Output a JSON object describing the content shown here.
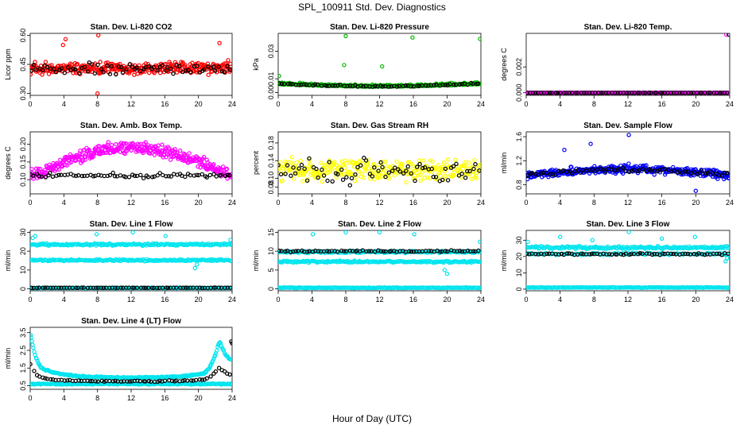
{
  "page": {
    "title": "SPL_100911  Std. Dev. Diagnostics",
    "xlabel": "Hour of Day (UTC)"
  },
  "chart_data": [
    {
      "type": "scatter",
      "title": "Stan. Dev. Li-820 CO2",
      "ylabel": "Licor ppm",
      "xlim": [
        0,
        24
      ],
      "ylim": [
        0.29,
        0.61
      ],
      "xticks": [
        "0",
        "4",
        "8",
        "12",
        "16",
        "20",
        "24"
      ],
      "yticks": [
        {
          "v": 0.3,
          "t": "0.30"
        },
        {
          "v": 0.45,
          "t": "0.45"
        },
        {
          "v": 0.6,
          "t": "0.60"
        }
      ],
      "series": [
        {
          "color": "#ff0000",
          "gen": {
            "kind": "noise",
            "base": 0.43,
            "amp": 0.045,
            "n": 340,
            "seed": 11,
            "outliers": [
              [
                4.2,
                0.58
              ],
              [
                8.1,
                0.6
              ],
              [
                8.0,
                0.3
              ],
              [
                22.5,
                0.56
              ],
              [
                3.9,
                0.55
              ]
            ]
          }
        },
        {
          "color": "#000000",
          "gen": {
            "kind": "noise",
            "base": 0.43,
            "amp": 0.04,
            "n": 72,
            "seed": 12
          }
        }
      ]
    },
    {
      "type": "scatter",
      "title": "Stan. Dev. Li-820 Pressure",
      "ylabel": "kPa",
      "xlim": [
        0,
        24
      ],
      "ylim": [
        -0.002,
        0.043
      ],
      "xticks": [
        "0",
        "4",
        "8",
        "12",
        "16",
        "20",
        "24"
      ],
      "yticks": [
        {
          "v": 0.0,
          "t": "0.00"
        },
        {
          "v": 0.01,
          "t": "0.01"
        },
        {
          "v": 0.03,
          "t": "0.03"
        }
      ],
      "series": [
        {
          "color": "#00bb00",
          "gen": {
            "kind": "bowl",
            "base": 0.006,
            "amp": 0.0015,
            "dip": 0.003,
            "n": 340,
            "seed": 21,
            "outliers": [
              [
                8.0,
                0.041
              ],
              [
                15.9,
                0.04
              ],
              [
                23.9,
                0.039
              ],
              [
                7.8,
                0.02
              ],
              [
                12.3,
                0.019
              ],
              [
                0.1,
                0.012
              ]
            ]
          }
        },
        {
          "color": "#000000",
          "gen": {
            "kind": "bowl",
            "base": 0.006,
            "amp": 0.0012,
            "dip": 0.003,
            "n": 72,
            "seed": 22
          }
        }
      ]
    },
    {
      "type": "scatter",
      "title": "Stan. Dev. Li-820 Temp.",
      "ylabel": "degrees C",
      "xlim": [
        0,
        24
      ],
      "ylim": [
        -0.0002,
        0.0046
      ],
      "xticks": [
        "0",
        "4",
        "8",
        "12",
        "16",
        "20",
        "24"
      ],
      "yticks": [
        {
          "v": 0.0,
          "t": "0.000"
        },
        {
          "v": 0.002,
          "t": "0.002"
        }
      ],
      "series": [
        {
          "color": "#ff00ff",
          "gen": {
            "kind": "flat",
            "base": 0.0,
            "n": 340,
            "seed": 31,
            "outliers": [
              [
                23.6,
                0.0045
              ],
              [
                0.0,
                0.0
              ]
            ]
          }
        },
        {
          "color": "#000000",
          "gen": {
            "kind": "flat",
            "base": 0.0,
            "n": 72,
            "seed": 32,
            "outliers": [
              [
                23.9,
                0.0045
              ]
            ]
          }
        }
      ]
    },
    {
      "type": "scatter",
      "title": "Stan. Dev. Amb. Box Temp.",
      "ylabel": "degrees C",
      "xlim": [
        0,
        24
      ],
      "ylim": [
        0.06,
        0.235
      ],
      "xticks": [
        "0",
        "4",
        "8",
        "12",
        "16",
        "20",
        "24"
      ],
      "yticks": [
        {
          "v": 0.1,
          "t": "0.10"
        },
        {
          "v": 0.15,
          "t": "0.15"
        },
        {
          "v": 0.2,
          "t": "0.20"
        }
      ],
      "series": [
        {
          "color": "#ff00ff",
          "gen": {
            "kind": "arch",
            "base": 0.11,
            "peak": 0.19,
            "amp": 0.025,
            "n": 380,
            "seed": 41
          }
        },
        {
          "color": "#000000",
          "gen": {
            "kind": "noise",
            "base": 0.112,
            "amp": 0.01,
            "n": 72,
            "seed": 42
          }
        }
      ]
    },
    {
      "type": "scatter",
      "title": "Stan. Dev. Gas Stream RH",
      "ylabel": "percent",
      "xlim": [
        0,
        24
      ],
      "ylim": [
        0.065,
        0.205
      ],
      "xticks": [
        "0",
        "4",
        "8",
        "12",
        "16",
        "20",
        "24"
      ],
      "yticks": [
        {
          "v": 0.08,
          "t": "0.08"
        },
        {
          "v": 0.1,
          "t": "0.10"
        },
        {
          "v": 0.14,
          "t": "0.14"
        },
        {
          "v": 0.18,
          "t": "0.18"
        }
      ],
      "series": [
        {
          "color": "#ffff00",
          "gen": {
            "kind": "noise",
            "base": 0.12,
            "amp": 0.035,
            "n": 300,
            "seed": 51
          }
        },
        {
          "color": "#000000",
          "gen": {
            "kind": "noise",
            "base": 0.12,
            "amp": 0.04,
            "n": 72,
            "seed": 52
          }
        }
      ]
    },
    {
      "type": "scatter",
      "title": "Stan. Dev. Sample Flow",
      "ylabel": "ml/min",
      "xlim": [
        0,
        24
      ],
      "ylim": [
        0.65,
        1.68
      ],
      "xticks": [
        "0",
        "4",
        "8",
        "12",
        "16",
        "20",
        "24"
      ],
      "yticks": [
        {
          "v": 0.8,
          "t": "0.8"
        },
        {
          "v": 1.2,
          "t": "1.2"
        },
        {
          "v": 1.6,
          "t": "1.6"
        }
      ],
      "series": [
        {
          "color": "#0000ff",
          "gen": {
            "kind": "arch",
            "base": 0.95,
            "peak": 1.06,
            "amp": 0.1,
            "n": 380,
            "seed": 61,
            "outliers": [
              [
                12.1,
                1.63
              ],
              [
                7.6,
                1.48
              ],
              [
                4.5,
                1.38
              ],
              [
                20.0,
                0.7
              ]
            ]
          }
        },
        {
          "color": "#000000",
          "gen": {
            "kind": "arch",
            "base": 0.97,
            "peak": 1.05,
            "amp": 0.05,
            "n": 72,
            "seed": 62
          }
        }
      ]
    },
    {
      "type": "scatter",
      "title": "Stan. Dev. Line 1 Flow",
      "ylabel": "ml/min",
      "xlim": [
        0,
        24
      ],
      "ylim": [
        -1,
        31
      ],
      "xticks": [
        "0",
        "4",
        "8",
        "12",
        "16",
        "20",
        "24"
      ],
      "yticks": [
        {
          "v": 0,
          "t": "0"
        },
        {
          "v": 10,
          "t": "10"
        },
        {
          "v": 20,
          "t": "20"
        },
        {
          "v": 30,
          "t": "30"
        }
      ],
      "series": [
        {
          "color": "#00e5ee",
          "gen": {
            "kind": "band",
            "base": 23.5,
            "amp": 0.8,
            "n": 200,
            "seed": 71,
            "outliers": [
              [
                0.3,
                27
              ],
              [
                0.6,
                28
              ],
              [
                7.9,
                29
              ],
              [
                12.2,
                30
              ],
              [
                16.1,
                28
              ],
              [
                19.6,
                11
              ],
              [
                19.8,
                13
              ],
              [
                23.8,
                26
              ]
            ]
          }
        },
        {
          "color": "#00e5ee",
          "gen": {
            "kind": "band",
            "base": 15.2,
            "amp": 0.7,
            "n": 200,
            "seed": 72
          }
        },
        {
          "color": "#00e5ee",
          "gen": {
            "kind": "band",
            "base": 0.5,
            "amp": 0.2,
            "n": 200,
            "seed": 73
          }
        },
        {
          "color": "#000000",
          "gen": {
            "kind": "band",
            "base": 0.6,
            "amp": 0.1,
            "n": 72,
            "seed": 74
          }
        }
      ]
    },
    {
      "type": "scatter",
      "title": "Stan. Dev. Line 2 Flow",
      "ylabel": "ml/min",
      "xlim": [
        0,
        24
      ],
      "ylim": [
        -0.5,
        15.5
      ],
      "xticks": [
        "0",
        "4",
        "8",
        "12",
        "16",
        "20",
        "24"
      ],
      "yticks": [
        {
          "v": 0,
          "t": "0"
        },
        {
          "v": 5,
          "t": "5"
        },
        {
          "v": 10,
          "t": "10"
        },
        {
          "v": 15,
          "t": "15"
        }
      ],
      "series": [
        {
          "color": "#00e5ee",
          "gen": {
            "kind": "band",
            "base": 9.8,
            "amp": 0.4,
            "n": 200,
            "seed": 81,
            "outliers": [
              [
                4.1,
                14.5
              ],
              [
                8.0,
                15
              ],
              [
                12.0,
                15
              ],
              [
                16.1,
                14.5
              ],
              [
                23.9,
                12.5
              ],
              [
                7.3,
                7.5
              ],
              [
                19.7,
                5
              ],
              [
                20.0,
                4
              ]
            ]
          }
        },
        {
          "color": "#00e5ee",
          "gen": {
            "kind": "band",
            "base": 7.2,
            "amp": 0.35,
            "n": 200,
            "seed": 82
          }
        },
        {
          "color": "#00e5ee",
          "gen": {
            "kind": "band",
            "base": 0.3,
            "amp": 0.15,
            "n": 200,
            "seed": 83
          }
        },
        {
          "color": "#000000",
          "gen": {
            "kind": "band",
            "base": 10.0,
            "amp": 0.3,
            "n": 72,
            "seed": 84
          }
        }
      ]
    },
    {
      "type": "scatter",
      "title": "Stan. Dev. Line 3 Flow",
      "ylabel": "ml/min",
      "xlim": [
        0,
        24
      ],
      "ylim": [
        -1,
        36
      ],
      "xticks": [
        "0",
        "4",
        "8",
        "12",
        "16",
        "20",
        "24"
      ],
      "yticks": [
        {
          "v": 0,
          "t": "0"
        },
        {
          "v": 10,
          "t": "10"
        },
        {
          "v": 20,
          "t": "20"
        },
        {
          "v": 30,
          "t": "30"
        }
      ],
      "series": [
        {
          "color": "#00e5ee",
          "gen": {
            "kind": "band",
            "base": 25.5,
            "amp": 1.2,
            "n": 200,
            "seed": 91,
            "outliers": [
              [
                0.2,
                29
              ],
              [
                4.0,
                32
              ],
              [
                7.8,
                30
              ],
              [
                12.1,
                35
              ],
              [
                16.0,
                31
              ],
              [
                19.9,
                32
              ],
              [
                23.5,
                17
              ],
              [
                23.7,
                19
              ]
            ]
          }
        },
        {
          "color": "#00e5ee",
          "gen": {
            "kind": "band",
            "base": 21.5,
            "amp": 1.0,
            "n": 120,
            "seed": 92
          }
        },
        {
          "color": "#00e5ee",
          "gen": {
            "kind": "band",
            "base": 1.0,
            "amp": 0.3,
            "n": 200,
            "seed": 93
          }
        },
        {
          "color": "#000000",
          "gen": {
            "kind": "band",
            "base": 21.5,
            "amp": 0.8,
            "n": 72,
            "seed": 94
          }
        }
      ]
    },
    {
      "type": "scatter",
      "title": "Stan. Dev. Line 4 (LT) Flow",
      "ylabel": "ml/min",
      "xlim": [
        0,
        24
      ],
      "ylim": [
        0.3,
        3.8
      ],
      "xticks": [
        "0",
        "4",
        "8",
        "12",
        "16",
        "20",
        "24"
      ],
      "yticks": [
        {
          "v": 0.5,
          "t": "0.5"
        },
        {
          "v": 1.5,
          "t": "1.5"
        },
        {
          "v": 2.5,
          "t": "2.5"
        },
        {
          "v": 3.5,
          "t": "3.5"
        }
      ],
      "series": [
        {
          "color": "#00e5ee",
          "gen": {
            "kind": "ucurve",
            "low": 0.95,
            "high": 3.6,
            "w": 0.9,
            "amp": 0.06,
            "n": 260,
            "seed": 101
          }
        },
        {
          "color": "#00e5ee",
          "gen": {
            "kind": "band",
            "base": 0.6,
            "amp": 0.05,
            "n": 200,
            "seed": 102
          }
        },
        {
          "color": "#000000",
          "gen": {
            "kind": "ucurve",
            "low": 0.75,
            "high": 1.75,
            "w": 0.6,
            "amp": 0.05,
            "n": 72,
            "seed": 103,
            "outliers": [
              [
                23.9,
                3.0
              ],
              [
                24.0,
                2.9
              ]
            ]
          }
        }
      ]
    }
  ]
}
